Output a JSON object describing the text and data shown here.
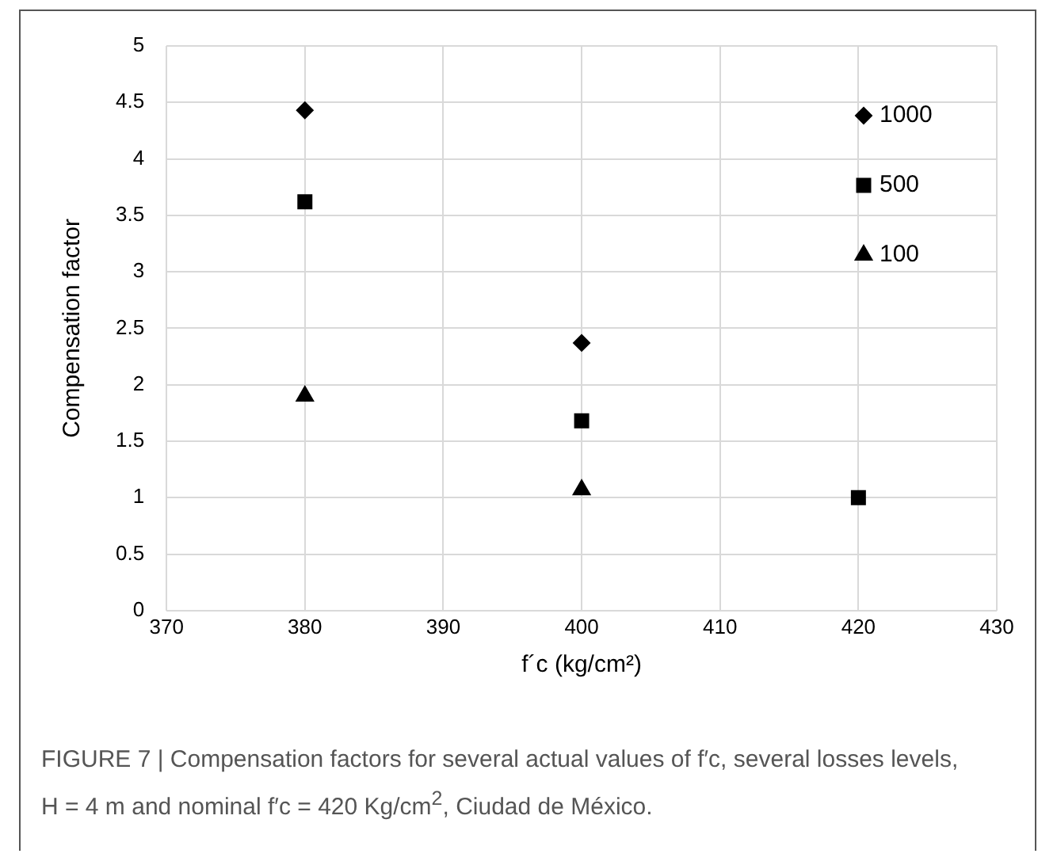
{
  "chart_data": {
    "type": "scatter",
    "xlabel": "f´c (kg/cm²)",
    "ylabel": "Compensation factor",
    "series": [
      {
        "name": "1000",
        "color": "#000000",
        "marker": "diamond",
        "x": [
          380,
          400
        ],
        "values": [
          4.43,
          2.37
        ]
      },
      {
        "name": "500",
        "color": "#000000",
        "marker": "square",
        "x": [
          380,
          400,
          420
        ],
        "values": [
          3.62,
          1.68,
          1.0
        ]
      },
      {
        "name": "100",
        "color": "#000000",
        "marker": "triangle",
        "x": [
          380,
          400
        ],
        "values": [
          1.9,
          1.07
        ]
      }
    ],
    "xlim": [
      370,
      430
    ],
    "xticks": [
      370,
      380,
      390,
      400,
      410,
      420,
      430
    ],
    "ylim": [
      0,
      5
    ],
    "yticks": [
      0,
      0.5,
      1,
      1.5,
      2,
      2.5,
      3,
      3.5,
      4,
      4.5,
      5
    ],
    "grid": true,
    "legend": "top right",
    "annotations": [
      "FIGURE 7 | Compensation factors for several actual values of f′c, several losses levels, H = 4 m and nominal f′c = 420 Kg/cm$^{2}$, Ciudad de México."
    ]
  }
}
